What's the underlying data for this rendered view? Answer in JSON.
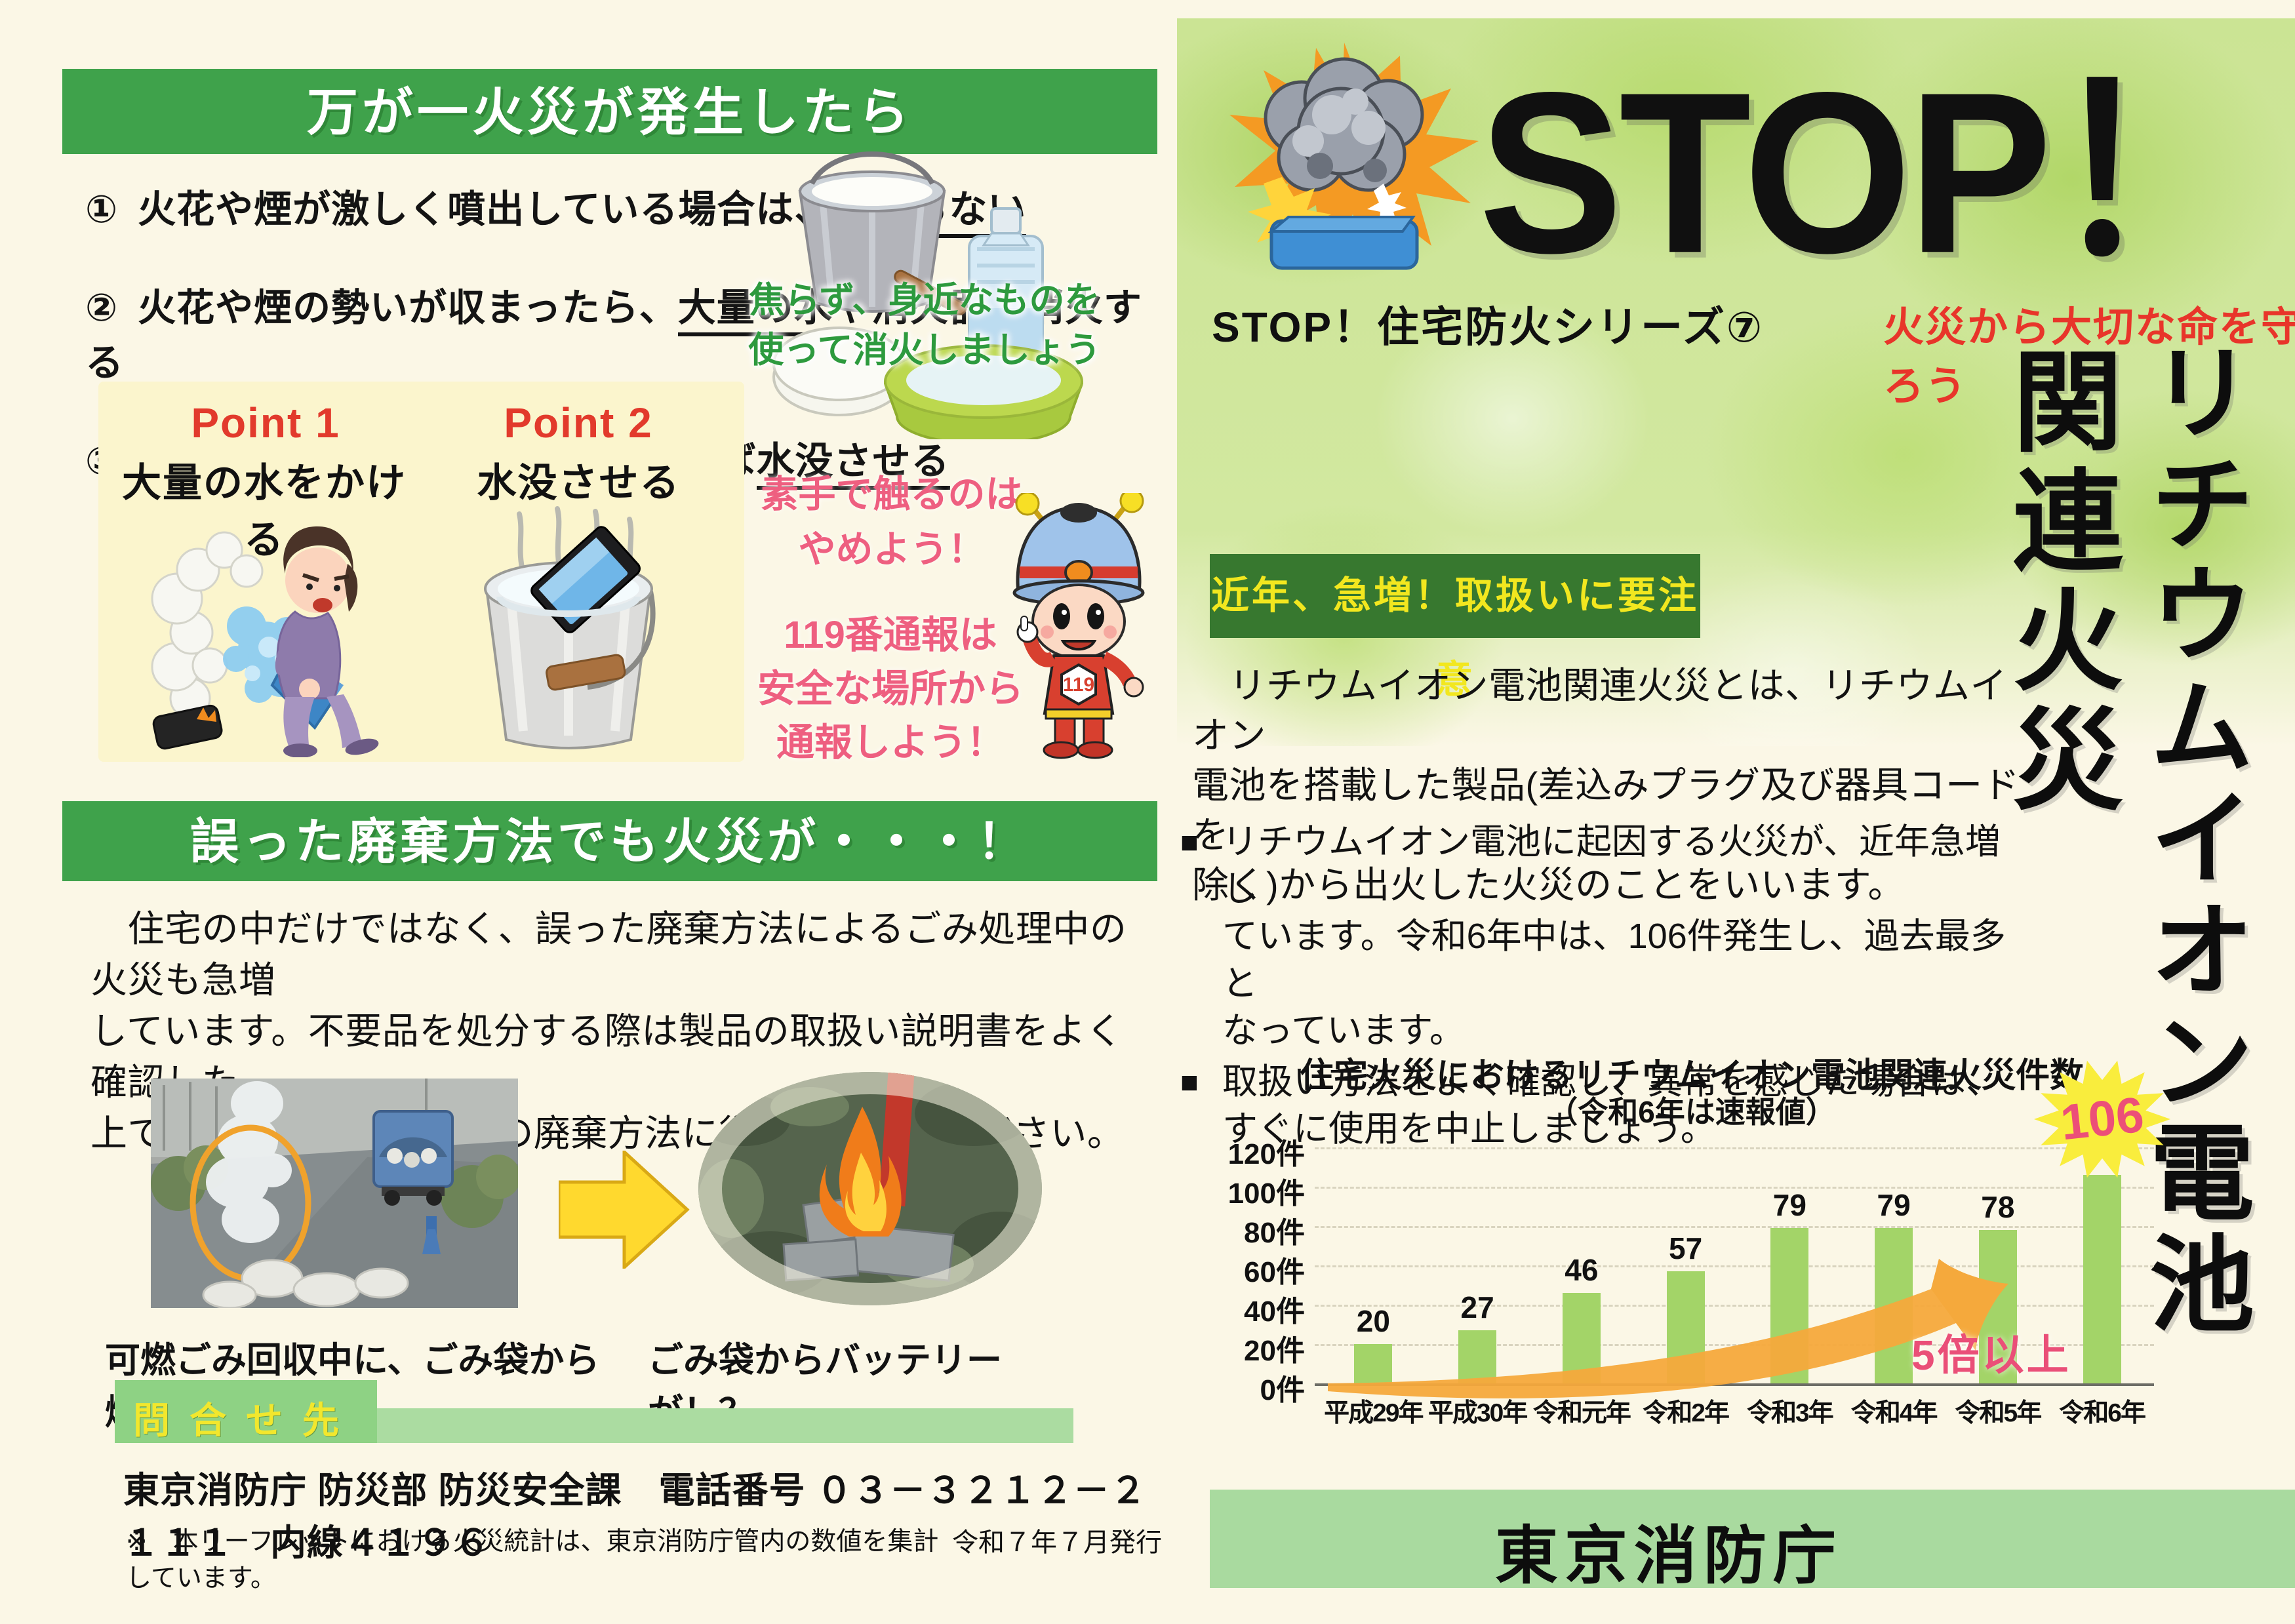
{
  "left": {
    "header1": "万が一火災が発生したら",
    "steps": [
      {
        "num": "①",
        "pre": "火花や煙が激しく噴出している場合は、",
        "u": "近寄らない",
        "post": ""
      },
      {
        "num": "②",
        "pre": "火花や煙の勢いが収まったら、",
        "u": "大量の水",
        "post": "や消火器で消火する"
      },
      {
        "num": "③",
        "pre": "消火後、安全に配慮し可能であれば",
        "u": "水没させる",
        "post": ""
      }
    ],
    "tip_text": "焦らず、身近なものを\n使って消火しましょう",
    "point_box": {
      "point1_label": "Point 1",
      "point1_caption": "大量の水をかける",
      "point2_label": "Point 2",
      "point2_caption": "水没させる"
    },
    "warning1": "素手で触るのは\nやめよう！",
    "warning2": "119番通報は\n安全な場所から\n通報しよう！",
    "mascot_badge": "119",
    "header2": "誤った廃棄方法でも火災が・・・！",
    "disposal_text": "　住宅の中だけではなく、誤った廃棄方法によるごみ処理中の火災も急増\nしています。不要品を処分する際は製品の取扱い説明書をよく確認した\n上で、お住まいの自治体の廃棄方法に従い廃棄してください。",
    "photo1_caption": "可燃ごみ回収中に、ごみ袋から煙！！",
    "photo2_caption": "ごみ袋からバッテリーが！？",
    "contact_label": "問合せ先",
    "contact_line": "東京消防庁 防災部 防災安全課　電話番号 ０３－３２１２－２１１１　内線４１９６",
    "footnote": "※　本リーフレットにおける火災統計は、東京消防庁管内の数値を集計しています。",
    "issue_date": "令和７年７月発行"
  },
  "right": {
    "stop_title": "STOP！",
    "series_label": "STOP！住宅防火シリーズ⑦",
    "slogan": "火災から大切な命を守ろう",
    "vertical_title_line1": "リチウムイオン電池",
    "vertical_title_line2": "関連火災",
    "badge": "近年、急増！取扱いに要注意",
    "definition": "　リチウムイオン電池関連火災とは、リチウムイオン\n電池を搭載した製品(差込みプラグ及び器具コードを\n除く)から出火した火災のことをいいます。",
    "bullets": [
      {
        "marker": "■",
        "text": "リチウムイオン電池に起因する火災が、近年急増し\nています。令和6年中は、106件発生し、過去最多と\nなっています。"
      },
      {
        "marker": "■",
        "text": "取扱い方法をよく確認し、異常を感じた場合は、\nすぐに使用を中止しましょう。"
      }
    ],
    "agency": "東京消防庁"
  },
  "chart_data": {
    "type": "bar",
    "title": "住宅火災におけるリチウムイオン電池関連火災件数",
    "subtitle": "（令和6年は速報値）",
    "categories": [
      "平成29年",
      "平成30年",
      "令和元年",
      "令和2年",
      "令和3年",
      "令和4年",
      "令和5年",
      "令和6年"
    ],
    "values": [
      20,
      27,
      46,
      57,
      79,
      79,
      78,
      106
    ],
    "unit": "件",
    "y_ticks": [
      0,
      20,
      40,
      60,
      80,
      100,
      120
    ],
    "ylim": [
      0,
      120
    ],
    "xlabel": "",
    "ylabel": "",
    "grid": "dashed",
    "legend": "none",
    "bar_color": "#a3d468",
    "highlight_index": 7,
    "highlight_value": 106,
    "annotation": "5倍以上"
  },
  "colors": {
    "header_green": "#3fa24b",
    "badge_green": "#37782f",
    "badge_yellow": "#f2e71f",
    "accent_red": "#e23a2c",
    "pink": "#ee5f80",
    "bar_green": "#a3d468",
    "arrow_orange": "#f5a93c",
    "bottom_bar_green": "#a9da9f",
    "point_box_yellow": "#fbf5cd"
  }
}
